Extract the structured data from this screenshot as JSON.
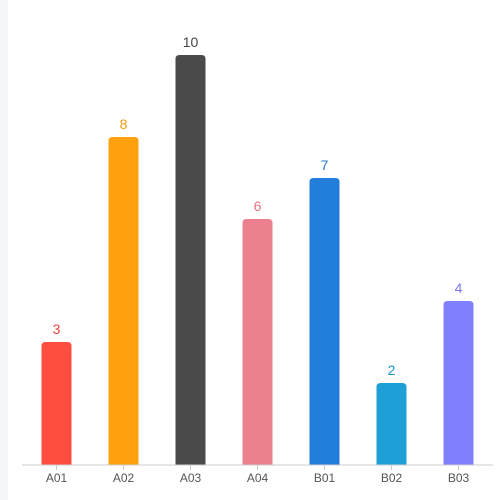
{
  "chart_data": {
    "type": "bar",
    "categories": [
      "A01",
      "A02",
      "A03",
      "A04",
      "B01",
      "B02",
      "B03"
    ],
    "values": [
      3,
      8,
      10,
      6,
      7,
      2,
      4
    ],
    "colors": [
      "#ff4d3f",
      "#ffa10d",
      "#4a4a4a",
      "#ec818e",
      "#237edb",
      "#1ea0d6",
      "#8080ff"
    ],
    "label_colors": [
      "#f0413b",
      "#f29a0c",
      "#444444",
      "#e57380",
      "#2277cc",
      "#1a95c9",
      "#7777ee"
    ],
    "ylim": [
      0,
      10
    ],
    "grid": false,
    "legend": "none",
    "title": "",
    "xlabel": "",
    "ylabel": ""
  }
}
